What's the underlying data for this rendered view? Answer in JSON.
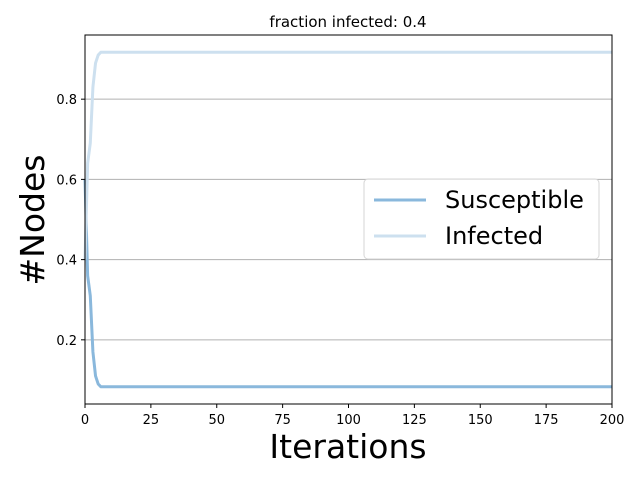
{
  "chart_data": {
    "type": "line",
    "title": "fraction infected: 0.4",
    "xlabel": "Iterations",
    "ylabel": "#Nodes",
    "xlim": [
      0,
      200
    ],
    "ylim": [
      0.04,
      0.96
    ],
    "xticks": [
      0,
      25,
      50,
      75,
      100,
      125,
      150,
      175,
      200
    ],
    "yticks": [
      0.2,
      0.4,
      0.6,
      0.8
    ],
    "ytick_labels": [
      "0.2",
      "0.4",
      "0.6",
      "0.8"
    ],
    "grid": "horizontal",
    "legend_position": "center-right",
    "series": [
      {
        "name": "Susceptible",
        "color": "#8ab8dc",
        "x": [
          0,
          1,
          2,
          3,
          4,
          5,
          6,
          200
        ],
        "y": [
          0.6,
          0.36,
          0.31,
          0.17,
          0.11,
          0.09,
          0.083,
          0.083
        ]
      },
      {
        "name": "Infected",
        "color": "#cde0ef",
        "x": [
          0,
          1,
          2,
          3,
          4,
          5,
          6,
          200
        ],
        "y": [
          0.4,
          0.64,
          0.69,
          0.83,
          0.89,
          0.91,
          0.917,
          0.917
        ]
      }
    ]
  }
}
